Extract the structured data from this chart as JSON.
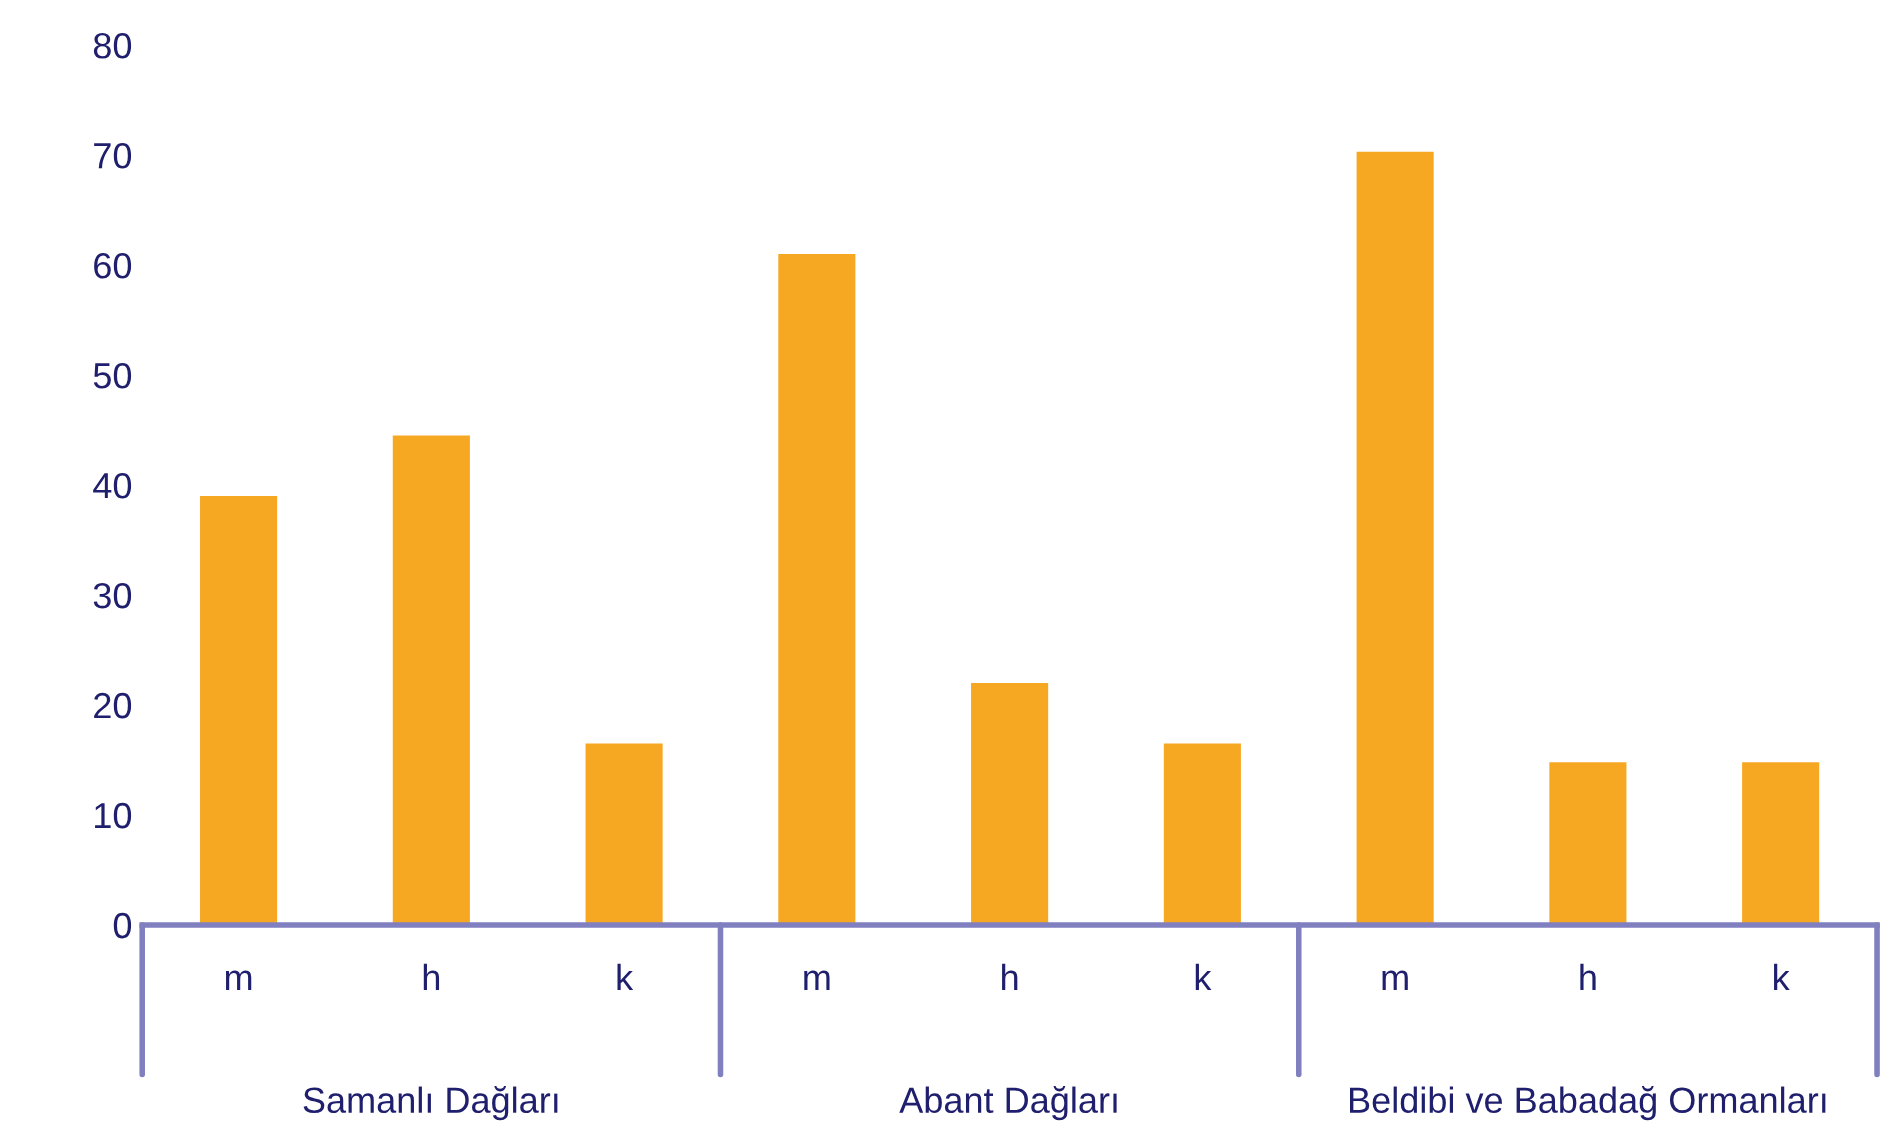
{
  "chart_data": {
    "type": "bar",
    "categories": [
      "m",
      "h",
      "k",
      "m",
      "h",
      "k",
      "m",
      "h",
      "k"
    ],
    "values": [
      39,
      44.5,
      16.5,
      61,
      22,
      16.5,
      70.3,
      14.8,
      14.8
    ],
    "color": "#f7a823",
    "ylim": [
      0,
      80
    ],
    "yticks": [
      0,
      10,
      20,
      30,
      40,
      50,
      60,
      70,
      80
    ],
    "grid": false,
    "annotations": [
      "Samanlı Dağları",
      "Abant Dağları",
      "Beldibi ve Babadağ Ormanları"
    ]
  }
}
